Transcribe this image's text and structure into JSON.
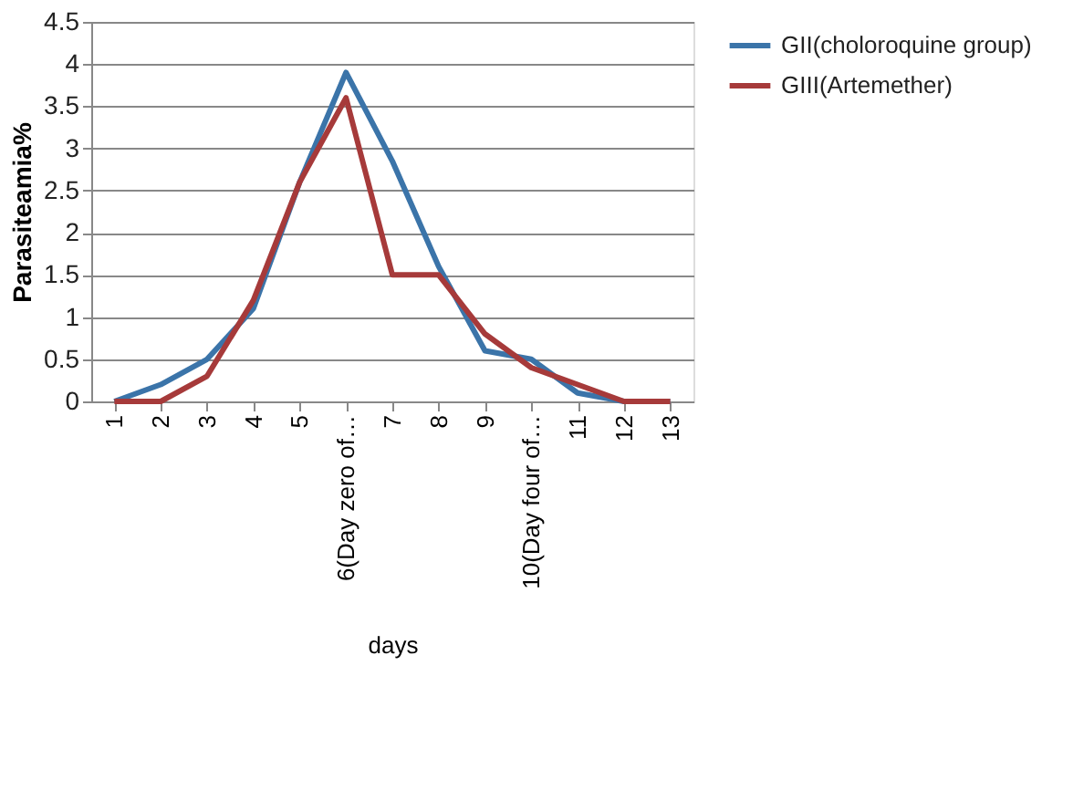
{
  "chart_data": {
    "type": "line",
    "xlabel": "days",
    "ylabel": "Parasiteamia%",
    "categories": [
      "1",
      "2",
      "3",
      "4",
      "5",
      "6(Day zero of…",
      "7",
      "8",
      "9",
      "10(Day four of…",
      "11",
      "12",
      "13"
    ],
    "series": [
      {
        "name": "GII(choloroquine group)",
        "color": "#3b74a9",
        "values": [
          0,
          0.2,
          0.5,
          1.1,
          2.6,
          3.9,
          2.85,
          1.6,
          0.6,
          0.5,
          0.1,
          0,
          0
        ]
      },
      {
        "name": "GIII(Artemether)",
        "color": "#a63a3a",
        "values": [
          0,
          0,
          0.3,
          1.2,
          2.6,
          3.6,
          1.5,
          1.5,
          0.8,
          0.4,
          0.2,
          0,
          0
        ]
      }
    ],
    "ylim": [
      0,
      4.5
    ],
    "yticks": [
      0,
      0.5,
      1,
      1.5,
      2,
      2.5,
      3,
      3.5,
      4,
      4.5
    ],
    "grid": "y",
    "legend": "right",
    "marker": "none",
    "line_style": "solid"
  }
}
